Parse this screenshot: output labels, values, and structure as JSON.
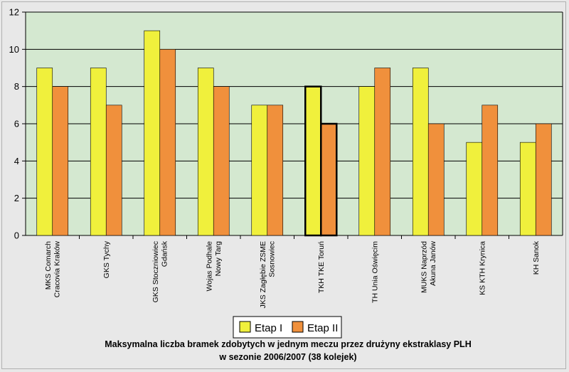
{
  "chart_data": {
    "type": "bar",
    "categories": [
      [
        "MKS Comarch",
        "Cracovia Kraków"
      ],
      [
        "GKS Tychy"
      ],
      [
        "GKS Stoczniowiec",
        "Gdańsk"
      ],
      [
        "Wojas Podhale",
        "Nowy Targ"
      ],
      [
        "JKS Zagłębie ZSME",
        "Sosnowiec"
      ],
      [
        "TKH TKE Toruń"
      ],
      [
        "TH Unia Oświęcim"
      ],
      [
        "MUKS Naprzód",
        "Akuna Janów"
      ],
      [
        "KS KTH Krynica"
      ],
      [
        "KH Sanok"
      ]
    ],
    "series": [
      {
        "name": "Etap I",
        "color": "#f0f03c",
        "values": [
          9,
          9,
          11,
          9,
          7,
          8,
          8,
          9,
          5,
          5
        ]
      },
      {
        "name": "Etap II",
        "color": "#f0903c",
        "values": [
          8,
          7,
          10,
          8,
          7,
          6,
          9,
          6,
          7,
          6
        ]
      }
    ],
    "highlighted_category_index": 5,
    "ylim": [
      0,
      12
    ],
    "yticks": [
      "0",
      "2",
      "4",
      "6",
      "8",
      "10",
      "12"
    ],
    "grid": true,
    "plot_background": "#d4e8d0",
    "legend_position": "bottom-center",
    "caption": [
      "Maksymalna liczba bramek zdobytych w jednym meczu przez drużyny ekstraklasy PLH",
      "w sezonie 2006/2007 (38 kolejek)"
    ]
  }
}
